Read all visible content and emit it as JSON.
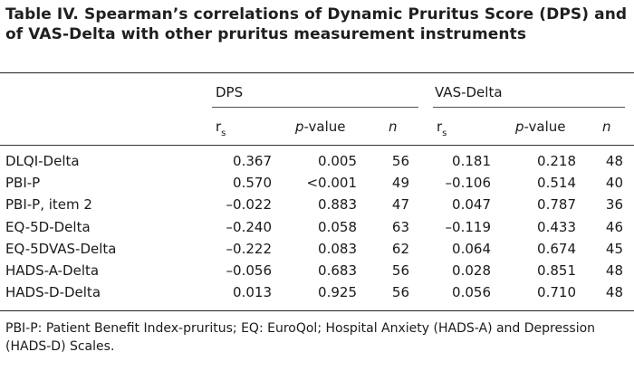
{
  "title": "Table IV. Spearman’s correlations of Dynamic Pruritus Score (DPS) and of VAS-Delta with other pruritus measurement instruments",
  "groups": {
    "dps": "DPS",
    "vas": "VAS-Delta"
  },
  "columns": {
    "rs_main": "r",
    "rs_sub": "s",
    "p_italic": "p",
    "p_rest": "-value",
    "n": "n"
  },
  "rows": [
    {
      "label": "DLQI-Delta",
      "dps_rs": "0.367",
      "dps_p": "0.005",
      "dps_n": "56",
      "vas_rs": "0.181",
      "vas_p": "0.218",
      "vas_n": "48"
    },
    {
      "label": "PBI-P",
      "dps_rs": "0.570",
      "dps_p": "<0.001",
      "dps_n": "49",
      "vas_rs": "–0.106",
      "vas_p": "0.514",
      "vas_n": "40"
    },
    {
      "label": "PBI-P, item 2",
      "dps_rs": "–0.022",
      "dps_p": "0.883",
      "dps_n": "47",
      "vas_rs": "0.047",
      "vas_p": "0.787",
      "vas_n": "36"
    },
    {
      "label": "EQ-5D-Delta",
      "dps_rs": "–0.240",
      "dps_p": "0.058",
      "dps_n": "63",
      "vas_rs": "–0.119",
      "vas_p": "0.433",
      "vas_n": "46"
    },
    {
      "label": "EQ-5DVAS-Delta",
      "dps_rs": "–0.222",
      "dps_p": "0.083",
      "dps_n": "62",
      "vas_rs": "0.064",
      "vas_p": "0.674",
      "vas_n": "45"
    },
    {
      "label": "HADS-A-Delta",
      "dps_rs": "–0.056",
      "dps_p": "0.683",
      "dps_n": "56",
      "vas_rs": "0.028",
      "vas_p": "0.851",
      "vas_n": "48"
    },
    {
      "label": "HADS-D-Delta",
      "dps_rs": "0.013",
      "dps_p": "0.925",
      "dps_n": "56",
      "vas_rs": "0.056",
      "vas_p": "0.710",
      "vas_n": "48"
    }
  ],
  "footnote": "PBI-P: Patient Benefit Index-pruritus; EQ: EuroQol; Hospital Anxiety (HADS-A) and Depression (HADS-D) Scales."
}
